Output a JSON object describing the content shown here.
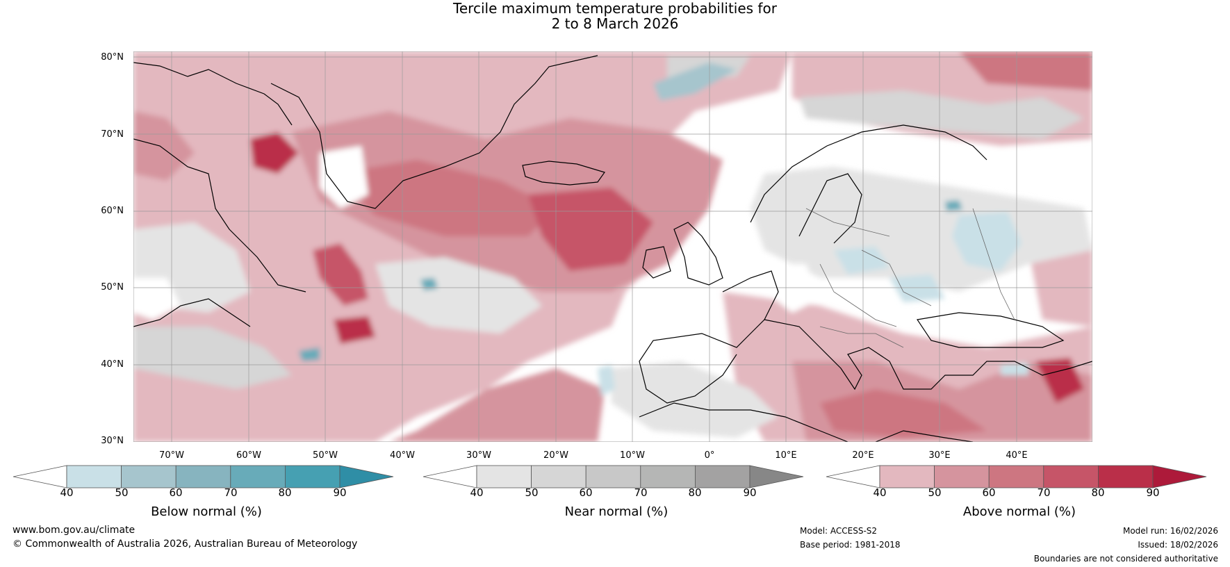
{
  "title": {
    "line1": "Tercile maximum temperature probabilities for",
    "line2": "2 to 8 March 2026"
  },
  "map": {
    "lat_labels": [
      "80°N",
      "70°N",
      "60°N",
      "50°N",
      "40°N",
      "30°N"
    ],
    "lon_labels": [
      "70°W",
      "60°W",
      "50°W",
      "40°W",
      "30°W",
      "20°W",
      "10°W",
      "0°",
      "10°E",
      "20°E",
      "30°E",
      "40°E"
    ]
  },
  "colorbars": [
    {
      "label": "Below normal (%)",
      "ticks": [
        "40",
        "50",
        "60",
        "70",
        "80",
        "90"
      ],
      "colors": [
        "#ffffff",
        "#c9e0e7",
        "#a6c5cd",
        "#87b4bf",
        "#68abb9",
        "#46a0b2",
        "#2f8ea6"
      ]
    },
    {
      "label": "Near normal (%)",
      "ticks": [
        "40",
        "50",
        "60",
        "70",
        "80",
        "90"
      ],
      "colors": [
        "#ffffff",
        "#e4e4e4",
        "#d6d6d6",
        "#c8c8c8",
        "#b5b6b5",
        "#a3a2a2",
        "#878787"
      ]
    },
    {
      "label": "Above normal (%)",
      "ticks": [
        "40",
        "50",
        "60",
        "70",
        "80",
        "90"
      ],
      "colors": [
        "#ffffff",
        "#e3b8bf",
        "#d5949e",
        "#cd7681",
        "#c65568",
        "#ba2f49",
        "#ad1a3a"
      ]
    }
  ],
  "footer": {
    "website": "www.bom.gov.au/climate",
    "copyright": "© Commonwealth of Australia 2026, Australian Bureau of Meteorology",
    "model": "Model: ACCESS-S2",
    "base_period": "Base period: 1981-2018",
    "model_run": "Model run: 16/02/2026",
    "issued": "Issued: 18/02/2026",
    "disclaimer": "Boundaries are not considered authoritative"
  }
}
